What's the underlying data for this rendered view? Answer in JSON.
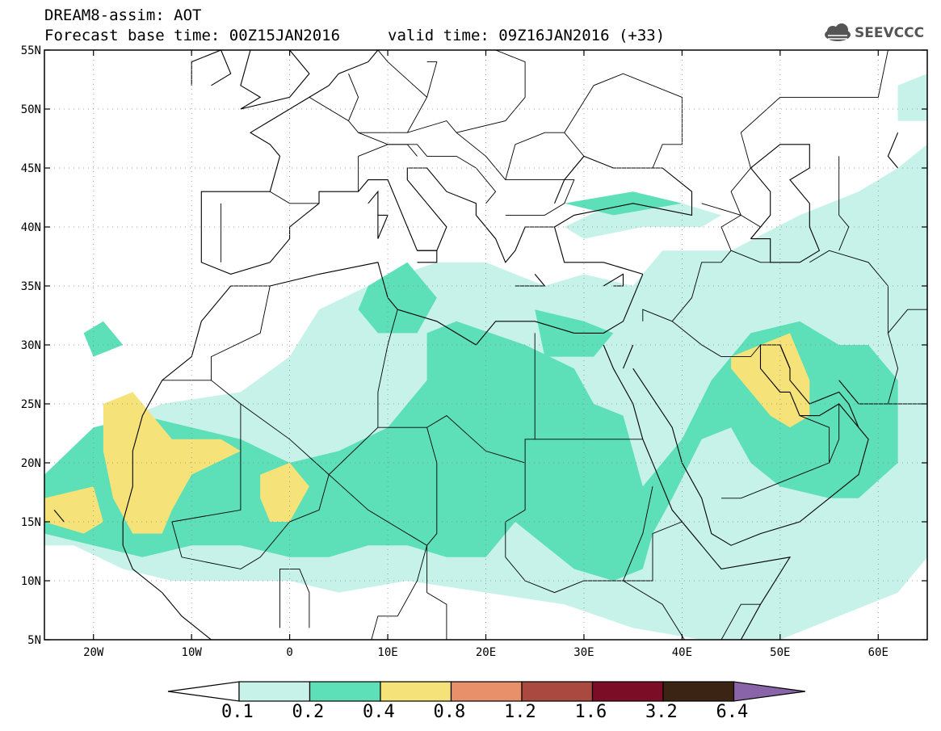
{
  "title": {
    "line1": "DREAM8-assim: AOT",
    "base_time": "Forecast base time: 00Z15JAN2016",
    "valid_time": "valid time: 09Z16JAN2016 (+33)"
  },
  "logo": {
    "text": "SEEVCCC",
    "icon": "cloud-icon"
  },
  "axes": {
    "lat_labels": [
      "55N",
      "50N",
      "45N",
      "40N",
      "35N",
      "30N",
      "25N",
      "20N",
      "15N",
      "10N",
      "5N"
    ],
    "lon_labels": [
      "20W",
      "10W",
      "0",
      "10E",
      "20E",
      "30E",
      "40E",
      "50E",
      "60E"
    ],
    "lat_range": [
      5,
      55
    ],
    "lon_range": [
      -25,
      65
    ],
    "grid": true
  },
  "colorbar": {
    "labels": [
      "0.1",
      "0.2",
      "0.4",
      "0.8",
      "1.2",
      "1.6",
      "3.2",
      "6.4"
    ],
    "colors": [
      "#c6f2ea",
      "#5ddfb8",
      "#f5e37a",
      "#e8906a",
      "#a9493f",
      "#7b0d26",
      "#3c2414",
      "#8a64a8"
    ],
    "under_color": "#ffffff"
  },
  "chart_data": {
    "type": "heatmap",
    "variable": "AOT",
    "levels": [
      0.1,
      0.2,
      0.4,
      0.8,
      1.2,
      1.6,
      3.2,
      6.4
    ],
    "regions": [
      {
        "level": 0.1,
        "polygons": [
          [
            [
              -25,
              18
            ],
            [
              -19,
              23
            ],
            [
              -13,
              25
            ],
            [
              -5,
              26
            ],
            [
              0,
              29
            ],
            [
              3,
              33
            ],
            [
              8,
              35
            ],
            [
              15,
              37
            ],
            [
              20,
              37
            ],
            [
              26,
              35
            ],
            [
              30,
              36
            ],
            [
              35,
              35
            ],
            [
              38,
              38
            ],
            [
              45,
              38
            ],
            [
              52,
              41
            ],
            [
              58,
              43
            ],
            [
              62,
              45
            ],
            [
              65,
              47
            ],
            [
              65,
              12
            ],
            [
              62,
              9
            ],
            [
              56,
              7
            ],
            [
              50,
              5
            ],
            [
              42,
              5
            ],
            [
              35,
              6
            ],
            [
              28,
              8
            ],
            [
              20,
              9
            ],
            [
              12,
              10
            ],
            [
              5,
              9
            ],
            [
              0,
              10
            ],
            [
              -5,
              10
            ],
            [
              -12,
              10
            ],
            [
              -17,
              11
            ],
            [
              -22,
              13
            ],
            [
              -25,
              13
            ]
          ],
          [
            [
              28,
              40
            ],
            [
              33,
              42
            ],
            [
              40,
              42
            ],
            [
              44,
              41
            ],
            [
              42,
              40
            ],
            [
              36,
              40
            ],
            [
              30,
              39
            ]
          ],
          [
            [
              62,
              49
            ],
            [
              65,
              49
            ],
            [
              65,
              53
            ],
            [
              62,
              52
            ]
          ]
        ]
      },
      {
        "level": 0.2,
        "polygons": [
          [
            [
              -25,
              19
            ],
            [
              -20,
              23
            ],
            [
              -15,
              24
            ],
            [
              -10,
              23
            ],
            [
              -5,
              22
            ],
            [
              0,
              20
            ],
            [
              5,
              21
            ],
            [
              10,
              23
            ],
            [
              14,
              27
            ],
            [
              14,
              31
            ],
            [
              17,
              32
            ],
            [
              24,
              30
            ],
            [
              29,
              28
            ],
            [
              31,
              25
            ],
            [
              34,
              24
            ],
            [
              35,
              21
            ],
            [
              36,
              18
            ],
            [
              40,
              22
            ],
            [
              43,
              27
            ],
            [
              47,
              31
            ],
            [
              52,
              32
            ],
            [
              56,
              30
            ],
            [
              59,
              30
            ],
            [
              62,
              27
            ],
            [
              62,
              20
            ],
            [
              58,
              17
            ],
            [
              55,
              17
            ],
            [
              50,
              18
            ],
            [
              47,
              20
            ],
            [
              45,
              23
            ],
            [
              42,
              22
            ],
            [
              39,
              17
            ],
            [
              37,
              14
            ],
            [
              36,
              11
            ],
            [
              33,
              10
            ],
            [
              29,
              11
            ],
            [
              26,
              13
            ],
            [
              23,
              15
            ],
            [
              20,
              12
            ],
            [
              16,
              12
            ],
            [
              12,
              13
            ],
            [
              8,
              13
            ],
            [
              4,
              12
            ],
            [
              0,
              12
            ],
            [
              -5,
              13
            ],
            [
              -10,
              13
            ],
            [
              -15,
              12
            ],
            [
              -20,
              13
            ],
            [
              -25,
              14
            ]
          ],
          [
            [
              8,
              35
            ],
            [
              12,
              37
            ],
            [
              15,
              34
            ],
            [
              13,
              31
            ],
            [
              9,
              31
            ],
            [
              7,
              33
            ]
          ],
          [
            [
              25,
              33
            ],
            [
              30,
              32
            ],
            [
              33,
              31
            ],
            [
              31,
              29
            ],
            [
              26,
              29
            ]
          ],
          [
            [
              28,
              42
            ],
            [
              35,
              43
            ],
            [
              40,
              42
            ],
            [
              33,
              41
            ]
          ],
          [
            [
              -21,
              31
            ],
            [
              -19,
              32
            ],
            [
              -17,
              30
            ],
            [
              -20,
              29
            ]
          ]
        ]
      },
      {
        "level": 0.4,
        "polygons": [
          [
            [
              -19,
              25
            ],
            [
              -16,
              26
            ],
            [
              -12,
              22
            ],
            [
              -7,
              22
            ],
            [
              -5,
              21
            ],
            [
              -10,
              19
            ],
            [
              -12,
              16
            ],
            [
              -13,
              14
            ],
            [
              -16,
              14
            ],
            [
              -18,
              17
            ],
            [
              -19,
              21
            ]
          ],
          [
            [
              -25,
              17
            ],
            [
              -20,
              18
            ],
            [
              -19,
              15
            ],
            [
              -21,
              14
            ],
            [
              -25,
              15
            ]
          ],
          [
            [
              -3,
              19
            ],
            [
              0,
              20
            ],
            [
              2,
              18
            ],
            [
              0,
              15
            ],
            [
              -2,
              15
            ],
            [
              -3,
              17
            ]
          ],
          [
            [
              45,
              29
            ],
            [
              48,
              30
            ],
            [
              51,
              31
            ],
            [
              53,
              27
            ],
            [
              53,
              24
            ],
            [
              51,
              23
            ],
            [
              49,
              24
            ],
            [
              47,
              26
            ],
            [
              45,
              28
            ]
          ]
        ]
      }
    ]
  }
}
